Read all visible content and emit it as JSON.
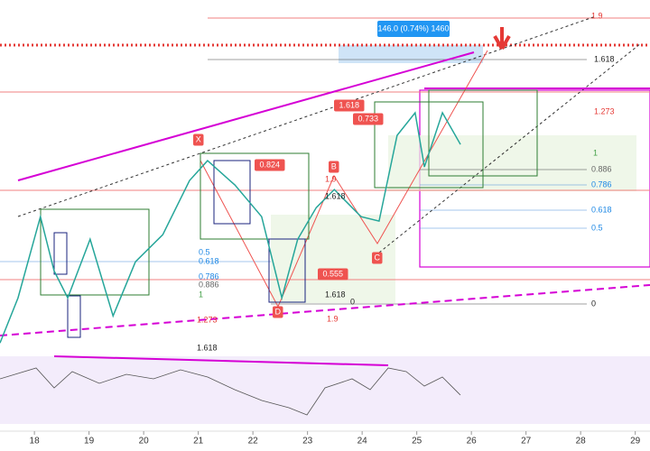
{
  "chart_data": {
    "type": "line",
    "x": [
      17.37,
      17.7,
      18.11,
      18.36,
      18.61,
      19.02,
      19.44,
      19.85,
      20.35,
      20.84,
      21.17,
      21.67,
      22.16,
      22.53,
      22.82,
      23.16,
      23.49,
      23.98,
      24.31,
      24.64,
      24.97,
      25.14,
      25.47,
      25.8
    ],
    "values": [
      17351,
      17716,
      18373,
      17935,
      17716,
      18190,
      17570,
      18008,
      18227,
      18665,
      18826,
      18629,
      18373,
      17716,
      18190,
      18446,
      18592,
      18373,
      18337,
      19030,
      19213,
      18775,
      19213,
      18957
    ],
    "color": "#26a69a",
    "xlim": [
      17.37,
      29.27
    ],
    "xticks": [
      18,
      19,
      20,
      21,
      22,
      23,
      24,
      25,
      26,
      27,
      28,
      29
    ],
    "ylim": [
      17280,
      20125
    ],
    "annotations": [
      "1.9",
      "1.618",
      "1.273",
      "1",
      "0.886",
      "0.786",
      "0.618",
      "0.5",
      "0",
      "1.9",
      "1.618",
      "0.5",
      "0.618",
      "0.786",
      "0.886",
      "1",
      "1.273",
      "1.618",
      "1.9",
      "1.618",
      "0",
      "0.824",
      "0.555",
      "0.733",
      "1.618",
      "X",
      "B",
      "C",
      "D",
      "146.0 (0.74%) 1460"
    ]
  }
}
